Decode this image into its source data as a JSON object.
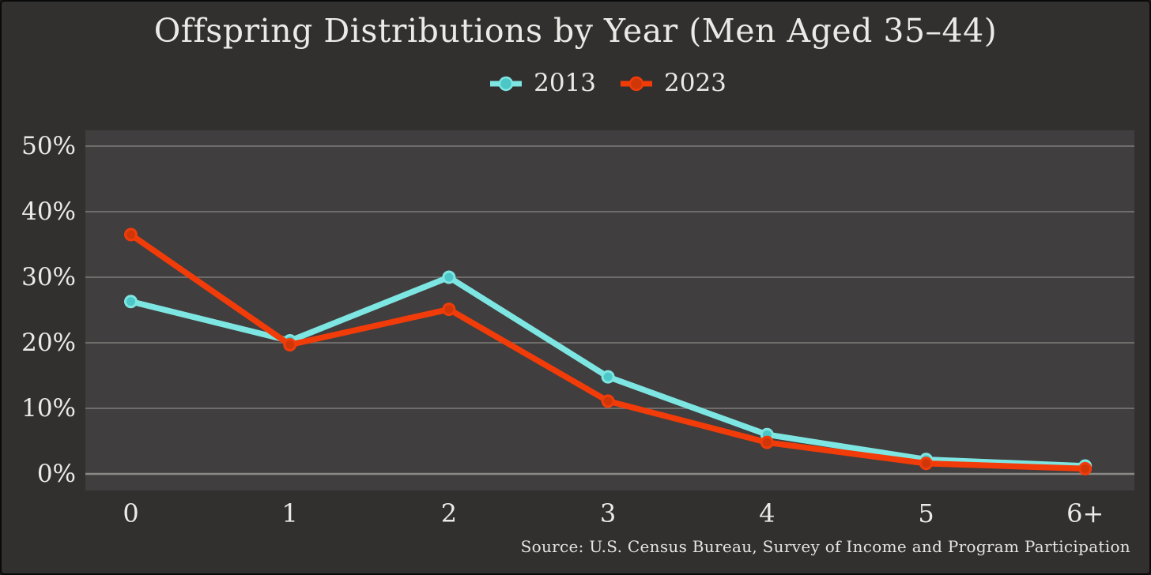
{
  "header": {
    "title": "Offspring Distributions by Year (Men Aged 35–44)"
  },
  "colors": {
    "background": "#322f2f",
    "plot_background": "#403e3e",
    "gridline": "#6f6d6b",
    "axis_line": "#8b8987",
    "text": "#eceae7",
    "series_2013_line": "#7ee6e2",
    "series_2013_marker": "#4cc6c6",
    "series_2023_line": "#f13c0a",
    "series_2023_marker": "#cf3708"
  },
  "footer": {
    "source": "Source: U.S. Census Bureau, Survey of Income and Program Participation"
  },
  "chart_data": {
    "type": "line",
    "title": "Offspring Distributions by Year (Men Aged 35–44)",
    "source": "Source: U.S. Census Bureau, Survey of Income and Program Participation",
    "categories": [
      "0",
      "1",
      "2",
      "3",
      "4",
      "5",
      "6+"
    ],
    "series": [
      {
        "name": "2013",
        "color": "#7ee6e2",
        "marker_fill": "#4cc6c6",
        "values": [
          26.3,
          20.3,
          30.0,
          14.8,
          6.0,
          2.2,
          1.2
        ]
      },
      {
        "name": "2023",
        "color": "#f13c0a",
        "marker_fill": "#cf3708",
        "values": [
          36.5,
          19.7,
          25.1,
          11.1,
          4.8,
          1.6,
          0.8
        ]
      }
    ],
    "xlabel": "",
    "ylabel": "",
    "ylim": [
      0,
      50
    ],
    "yticks": [
      0,
      10,
      20,
      30,
      40,
      50
    ],
    "ytick_suffix": "%",
    "grid": true,
    "legend_position": "top-center"
  }
}
